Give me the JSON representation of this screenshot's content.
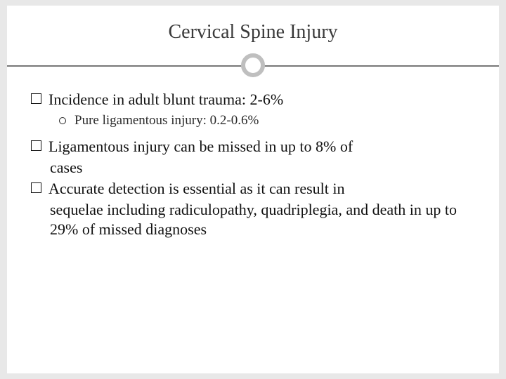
{
  "slide": {
    "title": "Cervical Spine Injury",
    "title_color": "#3a3a3a",
    "title_fontsize": 28,
    "background": "#ffffff",
    "page_background": "#e8e8e8",
    "rule": {
      "line_color": "#777777",
      "circle_border_color": "#bfbfbf",
      "circle_border_width": 6,
      "circle_diameter": 34
    },
    "body_fontsize": 22,
    "sub_fontsize": 19,
    "body_font": "Georgia",
    "bullets": [
      {
        "marker": "square",
        "text": "Incidence in adult blunt trauma: 2-6%",
        "sub": [
          {
            "marker": "circle",
            "text": "Pure ligamentous injury: 0.2-0.6%"
          }
        ]
      },
      {
        "marker": "square",
        "text": "Ligamentous injury can be missed in up to 8% of",
        "continuation": "cases"
      },
      {
        "marker": "square",
        "text": "Accurate detection is essential as it can result in",
        "continuation": "sequelae including radiculopathy, quadriplegia, and death in up to 29% of missed diagnoses"
      }
    ]
  }
}
